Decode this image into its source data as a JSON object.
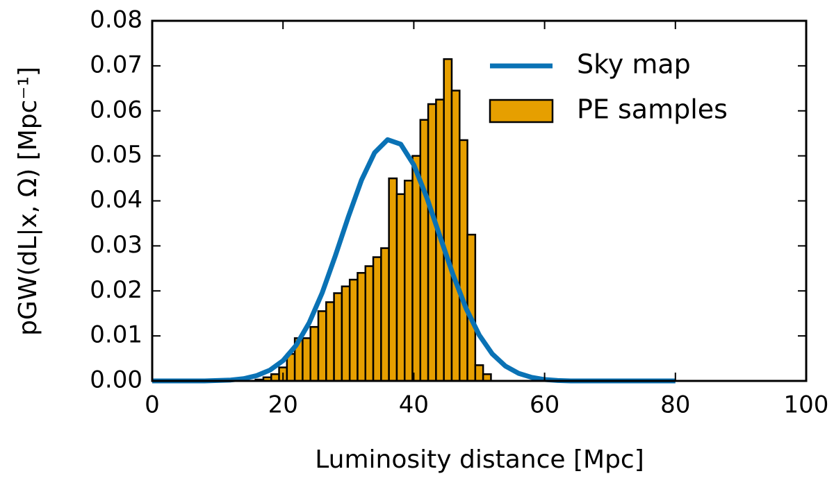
{
  "chart_data": {
    "type": "histogram",
    "xlabel": "Luminosity distance [Mpc]",
    "ylabel": "pGW(dL|x, Ω) [Mpc⁻¹]",
    "xlim": [
      0,
      100
    ],
    "xticks": [
      0,
      20,
      40,
      60,
      80,
      100
    ],
    "ylim": [
      0,
      0.08
    ],
    "yticks": [
      {
        "value": 0,
        "label": "0.00"
      },
      {
        "value": 0.01,
        "label": "0.01"
      },
      {
        "value": 0.02,
        "label": "0.02"
      },
      {
        "value": 0.03,
        "label": "0.03"
      },
      {
        "value": 0.04,
        "label": "0.04"
      },
      {
        "value": 0.05,
        "label": "0.05"
      },
      {
        "value": 0.06,
        "label": "0.06"
      },
      {
        "value": 0.07,
        "label": "0.07"
      },
      {
        "value": 0.08,
        "label": "0.08"
      }
    ],
    "legend": "upper right",
    "series": [
      {
        "name": "Sky map",
        "type": "line",
        "color": "#0a72b5",
        "x": [
          0,
          2,
          4,
          6,
          8,
          10,
          12,
          14,
          16,
          18,
          20,
          22,
          24,
          26,
          28,
          30,
          32,
          34,
          36,
          38,
          40,
          42,
          44,
          46,
          48,
          50,
          52,
          54,
          56,
          58,
          60,
          62,
          64,
          66,
          68,
          70,
          72,
          74,
          76,
          78,
          80
        ],
        "values": [
          0,
          0,
          0,
          0,
          0,
          0.0001,
          0.0002,
          0.0005,
          0.0012,
          0.0024,
          0.0045,
          0.0079,
          0.0129,
          0.0196,
          0.0278,
          0.0365,
          0.0446,
          0.0507,
          0.0536,
          0.0526,
          0.048,
          0.0407,
          0.0321,
          0.0236,
          0.0161,
          0.0102,
          0.006,
          0.0033,
          0.0017,
          0.0008,
          0.0003,
          0.0001,
          0,
          0,
          0,
          0,
          0,
          0,
          0,
          0,
          0
        ]
      },
      {
        "name": "PE samples",
        "type": "histogram",
        "color": "#e69f00",
        "bins": [
          15.8,
          17.0,
          18.2,
          19.4,
          20.6,
          21.8,
          23.0,
          24.2,
          25.4,
          26.6,
          27.8,
          29.0,
          30.2,
          31.4,
          32.6,
          33.8,
          35.0,
          36.2,
          37.4,
          38.6,
          39.8,
          41.0,
          42.2,
          43.4,
          44.6,
          45.8,
          47.0,
          48.2,
          49.4,
          50.6,
          51.8
        ],
        "values": [
          0.0003,
          0.0008,
          0.0015,
          0.003,
          0.006,
          0.0095,
          0.0095,
          0.012,
          0.0155,
          0.0175,
          0.0195,
          0.021,
          0.0225,
          0.024,
          0.0255,
          0.0275,
          0.0295,
          0.045,
          0.0415,
          0.0445,
          0.05,
          0.058,
          0.0615,
          0.0625,
          0.0715,
          0.0645,
          0.0535,
          0.0325,
          0.0035,
          0.0015
        ]
      }
    ]
  }
}
